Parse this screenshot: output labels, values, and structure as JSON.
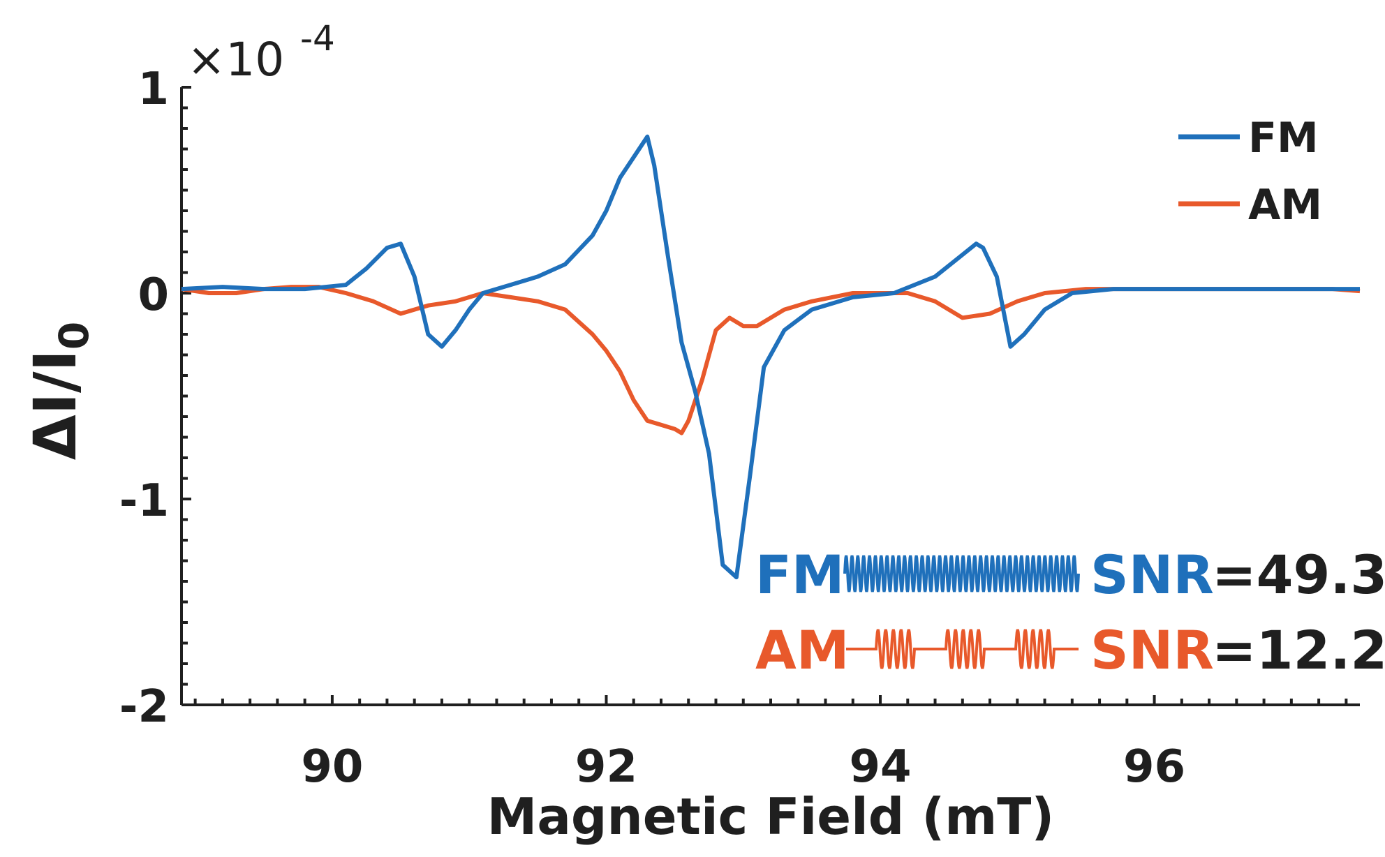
{
  "chart_data": {
    "type": "line",
    "xlabel": "Magnetic Field (mT)",
    "ylabel": "ΔI/I",
    "ylabel_subscript": "0",
    "y_multiplier": "×10",
    "y_multiplier_exponent": "-4",
    "xlim": [
      88.9,
      97.5
    ],
    "ylim": [
      -2,
      1
    ],
    "x_ticks": [
      90,
      92,
      94,
      96
    ],
    "x_tick_labels": [
      "90",
      "92",
      "94",
      "96"
    ],
    "y_ticks": [
      -2,
      -1,
      0,
      1
    ],
    "y_tick_labels": [
      "-2",
      "-1",
      "0",
      "1"
    ],
    "legend_position": "top-right",
    "series": [
      {
        "name": "FM",
        "color": "#1f70bb",
        "x": [
          88.9,
          89.2,
          89.5,
          89.8,
          90.1,
          90.25,
          90.4,
          90.5,
          90.6,
          90.7,
          90.8,
          90.9,
          91.0,
          91.1,
          91.3,
          91.5,
          91.7,
          91.9,
          92.0,
          92.1,
          92.2,
          92.3,
          92.35,
          92.45,
          92.55,
          92.65,
          92.75,
          92.85,
          92.95,
          93.05,
          93.15,
          93.3,
          93.5,
          93.8,
          94.1,
          94.4,
          94.55,
          94.7,
          94.75,
          94.85,
          94.95,
          95.05,
          95.2,
          95.4,
          95.7,
          96.0,
          96.3,
          96.6,
          96.9,
          97.2,
          97.5
        ],
        "y": [
          0.02,
          0.03,
          0.02,
          0.02,
          0.04,
          0.12,
          0.22,
          0.24,
          0.08,
          -0.2,
          -0.26,
          -0.18,
          -0.08,
          0.0,
          0.04,
          0.08,
          0.14,
          0.28,
          0.4,
          0.56,
          0.66,
          0.76,
          0.62,
          0.18,
          -0.24,
          -0.48,
          -0.78,
          -1.32,
          -1.38,
          -0.88,
          -0.36,
          -0.18,
          -0.08,
          -0.02,
          0.0,
          0.08,
          0.16,
          0.24,
          0.22,
          0.08,
          -0.26,
          -0.2,
          -0.08,
          0.0,
          0.02,
          0.02,
          0.02,
          0.02,
          0.02,
          0.02,
          0.02
        ]
      },
      {
        "name": "AM",
        "color": "#e8592b",
        "x": [
          88.9,
          89.1,
          89.3,
          89.5,
          89.7,
          89.9,
          90.1,
          90.3,
          90.5,
          90.7,
          90.9,
          91.1,
          91.3,
          91.5,
          91.7,
          91.9,
          92.0,
          92.1,
          92.2,
          92.3,
          92.4,
          92.5,
          92.55,
          92.6,
          92.7,
          92.8,
          92.9,
          93.0,
          93.1,
          93.3,
          93.5,
          93.8,
          94.0,
          94.2,
          94.4,
          94.6,
          94.8,
          95.0,
          95.2,
          95.5,
          95.8,
          96.1,
          96.4,
          96.7,
          97.0,
          97.3,
          97.5
        ],
        "y": [
          0.02,
          0.0,
          0.0,
          0.02,
          0.03,
          0.03,
          0.0,
          -0.04,
          -0.1,
          -0.06,
          -0.04,
          0.0,
          -0.02,
          -0.04,
          -0.08,
          -0.2,
          -0.28,
          -0.38,
          -0.52,
          -0.62,
          -0.64,
          -0.66,
          -0.68,
          -0.62,
          -0.42,
          -0.18,
          -0.12,
          -0.16,
          -0.16,
          -0.08,
          -0.04,
          0.0,
          0.0,
          0.0,
          -0.04,
          -0.12,
          -0.1,
          -0.04,
          0.0,
          0.02,
          0.02,
          0.02,
          0.02,
          0.02,
          0.02,
          0.02,
          0.01
        ]
      }
    ],
    "annotations": [
      {
        "label": "FM",
        "snr_label": "SNR",
        "value_text": "=49.3",
        "color": "#1f70bb",
        "waveform": "dense"
      },
      {
        "label": "AM",
        "snr_label": "SNR",
        "value_text": "=12.2",
        "color": "#e8592b",
        "waveform": "bursts"
      }
    ],
    "value_text_color": "#1f1f1f"
  }
}
